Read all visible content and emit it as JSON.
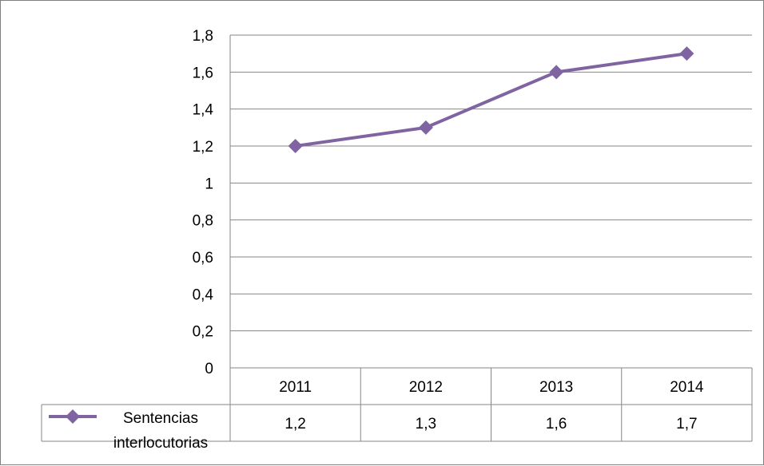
{
  "chart_data": {
    "type": "line",
    "title": "",
    "xlabel": "",
    "ylabel": "",
    "categories": [
      "2011",
      "2012",
      "2013",
      "2014"
    ],
    "series": [
      {
        "name": "Sentencias interlocutorias",
        "name_lines": [
          "Sentencias",
          "interlocutorias"
        ],
        "values": [
          1.2,
          1.3,
          1.6,
          1.7
        ],
        "value_labels": [
          "1,2",
          "1,3",
          "1,6",
          "1,7"
        ],
        "color": "#8064a2",
        "marker": "diamond"
      }
    ],
    "ylim": [
      0,
      1.8
    ],
    "y_ticks": [
      0,
      0.2,
      0.4,
      0.6,
      0.8,
      1,
      1.2,
      1.4,
      1.6,
      1.8
    ],
    "y_tick_labels": [
      "0",
      "0,2",
      "0,4",
      "0,6",
      "0,8",
      "1",
      "1,2",
      "1,4",
      "1,6",
      "1,8"
    ],
    "grid": true,
    "legend": "data-table-left",
    "data_table": true,
    "colors": {
      "gridline": "#868686",
      "table_border": "#868686"
    }
  }
}
